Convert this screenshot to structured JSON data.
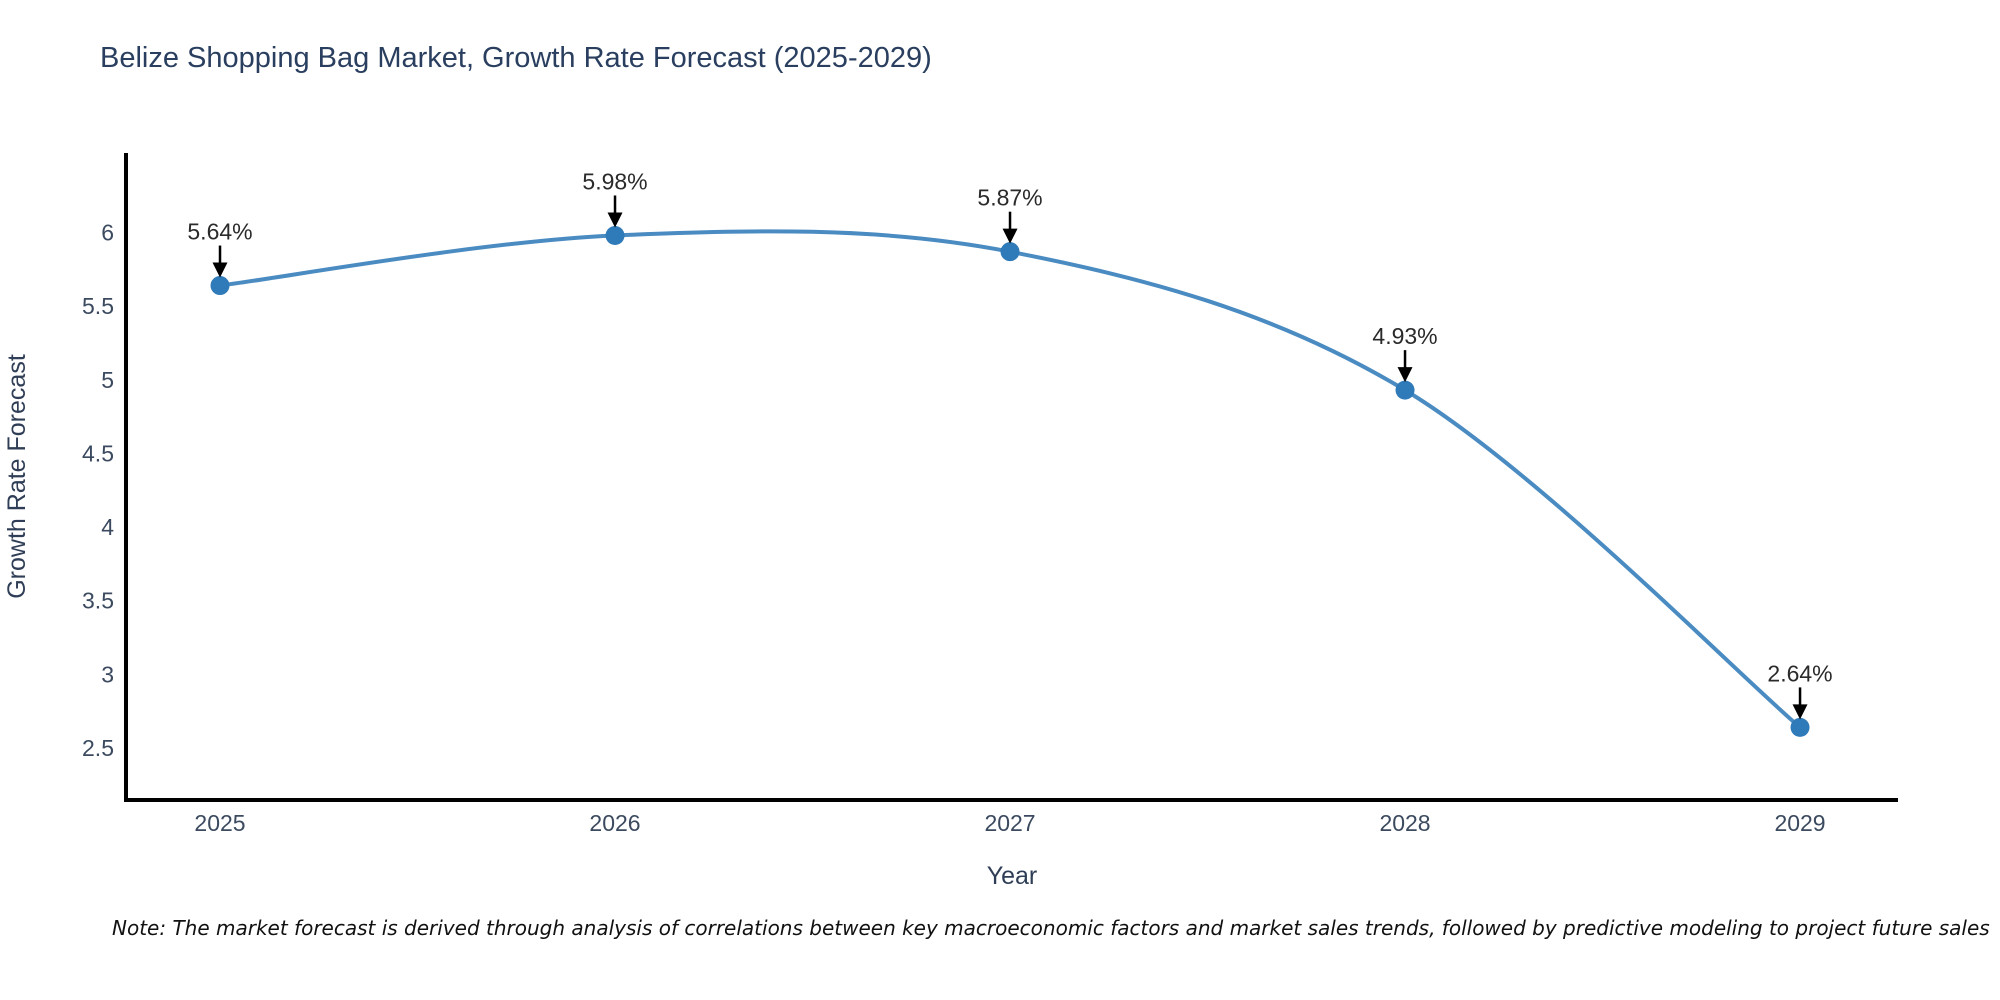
{
  "title": "Belize Shopping Bag Market, Growth Rate Forecast (2025-2029)",
  "note": "Note: The market forecast is derived through analysis of correlations between key macroeconomic factors and market sales trends, followed by predictive modeling to project future sales",
  "chart_data": {
    "type": "line",
    "title": "Belize Shopping Bag Market, Growth Rate Forecast (2025-2029)",
    "x": [
      2025,
      2026,
      2027,
      2028,
      2029
    ],
    "values": [
      5.64,
      5.98,
      5.87,
      4.93,
      2.64
    ],
    "point_labels": [
      "5.64%",
      "5.98%",
      "5.87%",
      "4.93%",
      "2.64%"
    ],
    "xlabel": "Year",
    "ylabel": "Growth Rate Forecast",
    "xticks": [
      2025,
      2026,
      2027,
      2028,
      2029
    ],
    "yticks": [
      2.5,
      3,
      3.5,
      4,
      4.5,
      5,
      5.5,
      6
    ],
    "xlim": [
      2024.762,
      2029.248
    ],
    "ylim": [
      2.147,
      6.54
    ],
    "line_shape": "spline",
    "grid": false,
    "legend": "none",
    "colors": {
      "line": "#4a8bc2",
      "marker": "#2f7ab8",
      "spine": "#000000",
      "arrow": "#000000",
      "tick_text": "#3b4a5f",
      "axis_title_text": "#2f3e56",
      "title_text": "#2a3f5f",
      "annotation_text": "#2a2a2a"
    }
  }
}
